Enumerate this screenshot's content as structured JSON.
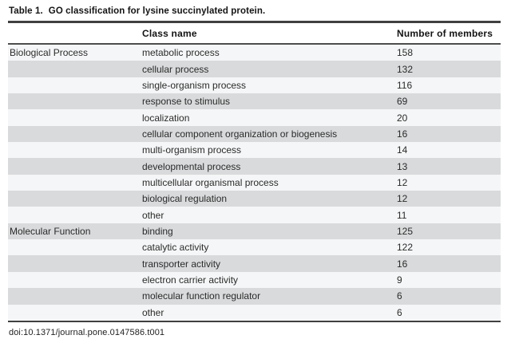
{
  "page": {
    "title_prefix": "Table 1.",
    "title_text": "GO classification for lysine succinylated protein.",
    "doi": "doi:10.1371/journal.pone.0147586.t001"
  },
  "colors": {
    "rule_dark": "#404040",
    "rule_header": "#4d4d4d",
    "row_shaded": "#d8dadb",
    "row_plain": "#f5f6f7",
    "text_strong": "#141414",
    "text_body": "#2b2b2b"
  },
  "table": {
    "columns": [
      {
        "label": ""
      },
      {
        "label": "Class name"
      },
      {
        "label": "Number of members"
      }
    ],
    "rows": [
      {
        "category": "Biological Process",
        "class_name": "metabolic process",
        "members": "158"
      },
      {
        "category": "",
        "class_name": "cellular process",
        "members": "132"
      },
      {
        "category": "",
        "class_name": "single-organism process",
        "members": "116"
      },
      {
        "category": "",
        "class_name": "response to stimulus",
        "members": "69"
      },
      {
        "category": "",
        "class_name": "localization",
        "members": "20"
      },
      {
        "category": "",
        "class_name": "cellular component organization or biogenesis",
        "members": "16"
      },
      {
        "category": "",
        "class_name": "multi-organism process",
        "members": "14"
      },
      {
        "category": "",
        "class_name": "developmental process",
        "members": "13"
      },
      {
        "category": "",
        "class_name": "multicellular organismal process",
        "members": "12"
      },
      {
        "category": "",
        "class_name": "biological regulation",
        "members": "12"
      },
      {
        "category": "",
        "class_name": "other",
        "members": "11"
      },
      {
        "category": "Molecular Function",
        "class_name": "binding",
        "members": "125"
      },
      {
        "category": "",
        "class_name": "catalytic activity",
        "members": "122"
      },
      {
        "category": "",
        "class_name": "transporter activity",
        "members": "16"
      },
      {
        "category": "",
        "class_name": "electron carrier activity",
        "members": "9"
      },
      {
        "category": "",
        "class_name": "molecular function regulator",
        "members": "6"
      },
      {
        "category": "",
        "class_name": "other",
        "members": "6"
      }
    ]
  }
}
